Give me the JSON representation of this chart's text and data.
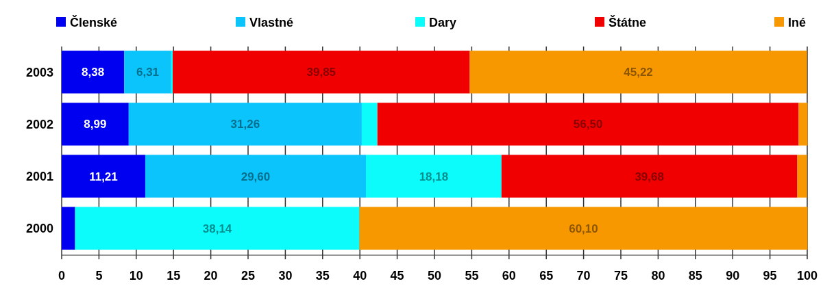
{
  "chart_data": {
    "type": "bar",
    "orientation": "horizontal",
    "stacked": true,
    "categories": [
      "2003",
      "2002",
      "2001",
      "2000"
    ],
    "series": [
      {
        "name": "Členské",
        "color": "#0000f0",
        "values": [
          8.38,
          8.99,
          11.21,
          1.8
        ],
        "value_labels": [
          "8,38",
          "8,99",
          "11,21",
          null
        ]
      },
      {
        "name": "Vlastné",
        "color": "#0cc4fc",
        "values": [
          6.31,
          31.26,
          29.6,
          0
        ],
        "value_labels": [
          "6,31",
          "31,26",
          "29,60",
          null
        ]
      },
      {
        "name": "Dary",
        "color": "#0cfcfc",
        "values": [
          0.2,
          2.1,
          18.18,
          38.14
        ],
        "value_labels": [
          null,
          null,
          "18,18",
          "38,14"
        ]
      },
      {
        "name": "Štátne",
        "color": "#f00000",
        "values": [
          39.85,
          56.5,
          39.68,
          0
        ],
        "value_labels": [
          "39,85",
          "56,50",
          "39,68",
          null
        ]
      },
      {
        "name": "Iné",
        "color": "#f89800",
        "values": [
          45.22,
          1.2,
          1.3,
          60.1
        ],
        "value_labels": [
          "45,22",
          null,
          null,
          "60,10"
        ]
      }
    ],
    "xlim": [
      0,
      100
    ],
    "xticks": [
      0,
      5,
      10,
      15,
      20,
      25,
      30,
      35,
      40,
      45,
      50,
      55,
      60,
      65,
      70,
      75,
      80,
      85,
      90,
      95,
      100
    ],
    "grid": "x",
    "legend": "top"
  }
}
